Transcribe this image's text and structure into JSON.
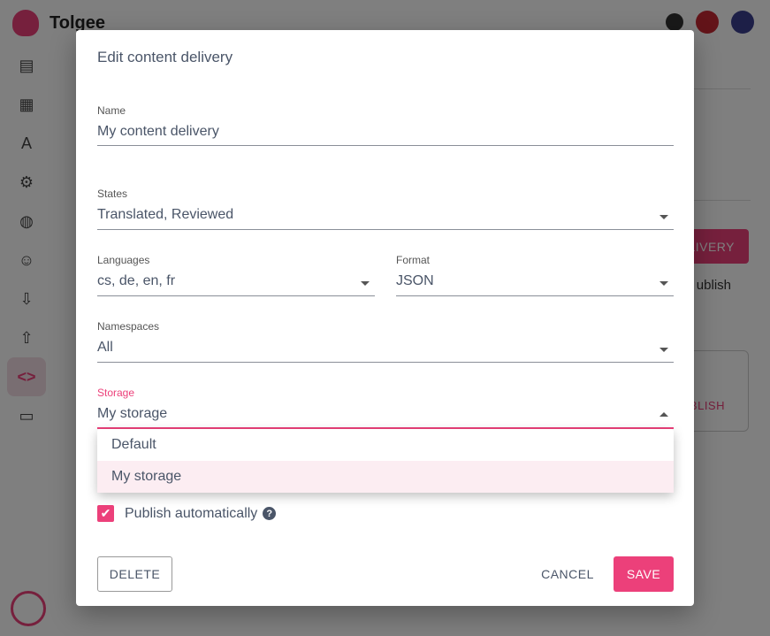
{
  "app": {
    "brand": "Tolgee"
  },
  "background": {
    "primary_button_partial": "LIVERY",
    "text_partial": "ublish",
    "card_button_partial": "BLISH"
  },
  "sidebar": {
    "items": [
      {
        "icon": "translations-icon"
      },
      {
        "icon": "dashboard-icon"
      },
      {
        "icon": "languages-icon"
      },
      {
        "icon": "settings-icon"
      },
      {
        "icon": "globe-icon"
      },
      {
        "icon": "members-icon"
      },
      {
        "icon": "import-icon"
      },
      {
        "icon": "export-icon"
      },
      {
        "icon": "developer-icon",
        "active": true
      },
      {
        "icon": "integrate-icon"
      }
    ]
  },
  "dialog": {
    "title": "Edit content delivery",
    "name": {
      "label": "Name",
      "value": "My content delivery"
    },
    "states": {
      "label": "States",
      "value": "Translated, Reviewed"
    },
    "languages": {
      "label": "Languages",
      "value": "cs, de, en, fr"
    },
    "format": {
      "label": "Format",
      "value": "JSON"
    },
    "namespaces": {
      "label": "Namespaces",
      "value": "All"
    },
    "storage": {
      "label": "Storage",
      "value": "My storage",
      "options": [
        "Default",
        "My storage"
      ]
    },
    "publish_auto": {
      "label": "Publish automatically",
      "checked": true,
      "help": "?"
    },
    "delete_label": "DELETE",
    "cancel_label": "CANCEL",
    "save_label": "SAVE"
  },
  "colors": {
    "accent": "#ec407a",
    "text": "#4a5568"
  }
}
